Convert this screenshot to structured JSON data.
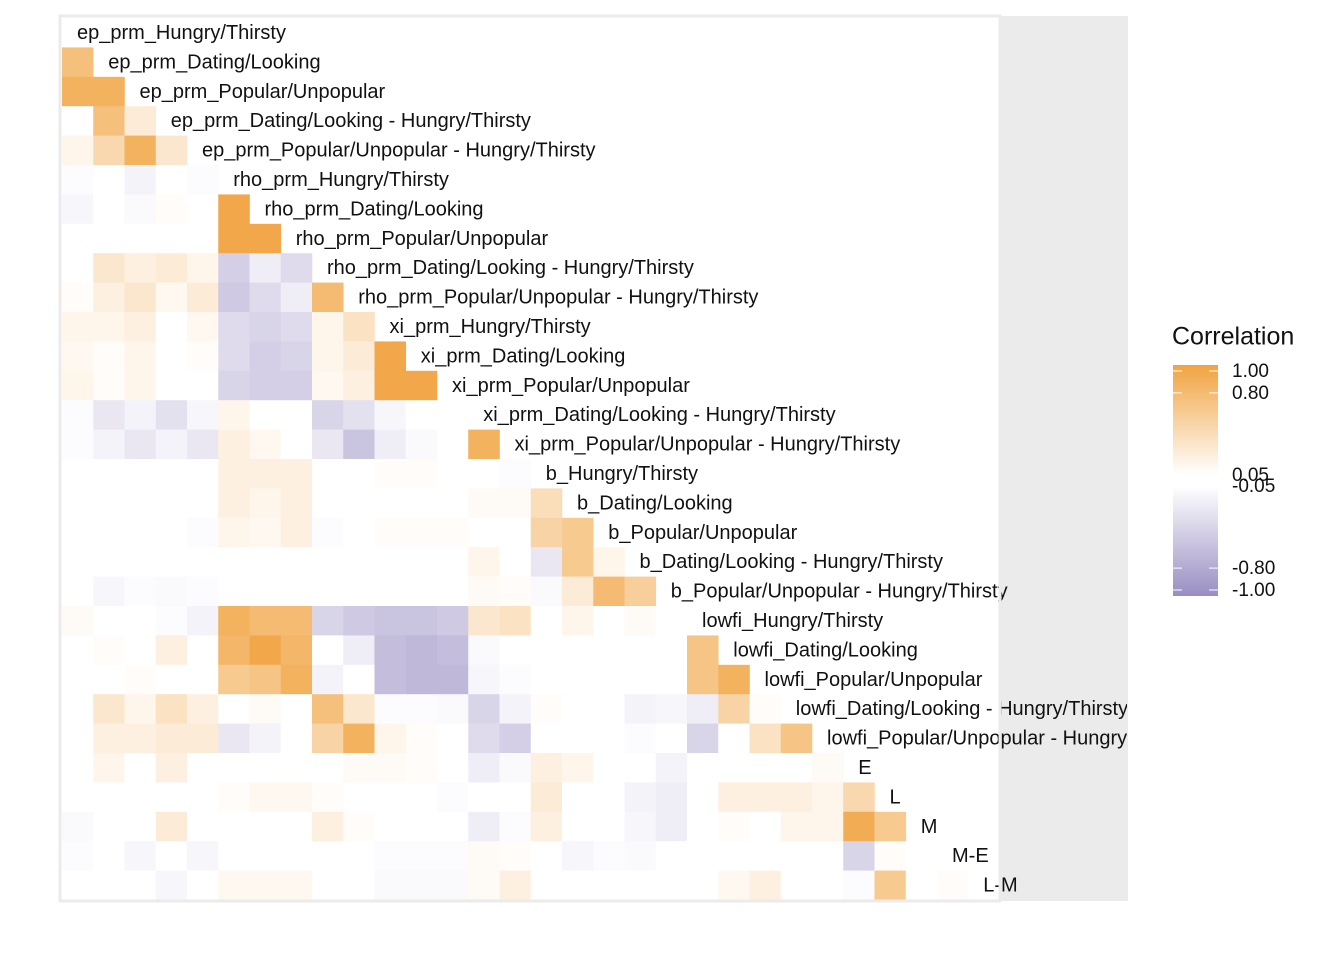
{
  "chart_data": {
    "type": "heatmap",
    "variables": [
      "ep_prm_Hungry/Thirsty",
      "ep_prm_Dating/Looking",
      "ep_prm_Popular/Unpopular",
      "ep_prm_Dating/Looking - Hungry/Thirsty",
      "ep_prm_Popular/Unpopular - Hungry/Thirsty",
      "rho_prm_Hungry/Thirsty",
      "rho_prm_Dating/Looking",
      "rho_prm_Popular/Unpopular",
      "rho_prm_Dating/Looking - Hungry/Thirsty",
      "rho_prm_Popular/Unpopular - Hungry/Thirsty",
      "xi_prm_Hungry/Thirsty",
      "xi_prm_Dating/Looking",
      "xi_prm_Popular/Unpopular",
      "xi_prm_Dating/Looking - Hungry/Thirsty",
      "xi_prm_Popular/Unpopular - Hungry/Thirsty",
      "b_Hungry/Thirsty",
      "b_Dating/Looking",
      "b_Popular/Unpopular",
      "b_Dating/Looking - Hungry/Thirsty",
      "b_Popular/Unpopular - Hungry/Thirsty",
      "lowfi_Hungry/Thirsty",
      "lowfi_Dating/Looking",
      "lowfi_Popular/Unpopular",
      "lowfi_Dating/Looking - Hungry/Thirsty",
      "lowfi_Popular/Unpopular - Hungry/Thirsty",
      "E",
      "L",
      "M",
      "M-E",
      "L-M"
    ],
    "rows": [
      [],
      [
        0.7
      ],
      [
        0.85,
        0.85
      ],
      [
        0,
        0.7,
        0.25
      ],
      [
        0.15,
        0.45,
        0.85,
        0.3
      ],
      [
        -0.08,
        -0.03,
        -0.15,
        0,
        -0.08
      ],
      [
        -0.12,
        0,
        -0.1,
        0.08,
        -0.03,
        0.95
      ],
      [
        -0.05,
        0,
        -0.05,
        0,
        0,
        0.95,
        0.95
      ],
      [
        0,
        0.3,
        0.2,
        0.25,
        0.15,
        -0.45,
        -0.2,
        -0.35
      ],
      [
        0.08,
        0.2,
        0.3,
        0.12,
        0.25,
        -0.5,
        -0.35,
        -0.2,
        0.75
      ],
      [
        0.15,
        0.15,
        0.2,
        0.05,
        0.12,
        -0.35,
        -0.4,
        -0.35,
        0.15,
        0.35
      ],
      [
        0.12,
        0.08,
        0.15,
        0,
        0.08,
        -0.35,
        -0.45,
        -0.4,
        0.15,
        0.25,
        0.95
      ],
      [
        0.15,
        0.08,
        0.15,
        0,
        0.05,
        -0.4,
        -0.45,
        -0.45,
        0.12,
        0.2,
        0.95,
        0.95
      ],
      [
        -0.08,
        -0.25,
        -0.15,
        -0.3,
        -0.12,
        0.15,
        0,
        0,
        -0.4,
        -0.3,
        -0.12,
        -0.05,
        0
      ],
      [
        -0.08,
        -0.15,
        -0.25,
        -0.15,
        -0.25,
        0.2,
        0.12,
        0,
        -0.25,
        -0.55,
        -0.2,
        -0.1,
        -0.05,
        0.85
      ],
      [
        0,
        0,
        0,
        0.05,
        0,
        0.2,
        0.2,
        0.2,
        0,
        0,
        0.08,
        0.08,
        0.05,
        0,
        -0.08
      ],
      [
        0,
        0,
        0,
        0,
        0,
        0.2,
        0.15,
        0.2,
        -0.05,
        -0.03,
        0.05,
        0.05,
        0.05,
        0.1,
        0.1,
        0.4
      ],
      [
        0,
        0,
        -0.03,
        -0.05,
        -0.08,
        0.15,
        0.12,
        0.2,
        -0.08,
        0,
        0.08,
        0.08,
        0.08,
        0,
        0.05,
        0.5,
        0.6
      ],
      [
        0,
        -0.03,
        -0.05,
        0,
        -0.05,
        0,
        0,
        0,
        0,
        0,
        -0.05,
        -0.03,
        -0.03,
        0.15,
        0.05,
        -0.25,
        0.6,
        0.15
      ],
      [
        0,
        -0.12,
        -0.08,
        -0.1,
        -0.08,
        0,
        0,
        0.05,
        0,
        0,
        0,
        0,
        0,
        0.1,
        0.08,
        -0.1,
        0.25,
        0.75,
        0.55
      ],
      [
        0.1,
        0,
        -0.05,
        -0.08,
        -0.15,
        0.85,
        0.75,
        0.75,
        -0.4,
        -0.5,
        -0.55,
        -0.55,
        -0.5,
        0.3,
        0.35,
        0,
        0.15,
        0,
        0.1,
        0
      ],
      [
        -0.05,
        0.08,
        0.03,
        0.2,
        0,
        0.8,
        0.95,
        0.8,
        0,
        -0.2,
        -0.6,
        -0.65,
        -0.6,
        -0.1,
        0.05,
        0,
        0.05,
        0,
        0,
        -0.05,
        0.65
      ],
      [
        0,
        0.05,
        0.08,
        0.05,
        0,
        0.6,
        0.65,
        0.85,
        -0.15,
        0,
        -0.6,
        -0.65,
        -0.65,
        -0.12,
        -0.08,
        0,
        0,
        0,
        0,
        0,
        0.65,
        0.85
      ],
      [
        -0.05,
        0.3,
        0.15,
        0.35,
        0.2,
        -0.03,
        0.1,
        0,
        0.7,
        0.3,
        -0.08,
        -0.08,
        -0.1,
        -0.4,
        -0.15,
        0.08,
        -0.03,
        -0.05,
        -0.15,
        -0.12,
        -0.2,
        0.5,
        0.08
      ],
      [
        0,
        0.2,
        0.2,
        0.25,
        0.25,
        -0.25,
        -0.15,
        0,
        0.5,
        0.85,
        0.15,
        0.08,
        0.05,
        -0.35,
        -0.45,
        0,
        -0.03,
        -0.05,
        -0.08,
        -0.05,
        -0.4,
        0,
        0.35,
        0.65
      ],
      [
        0,
        0.15,
        0,
        0.2,
        0.05,
        0,
        0,
        0,
        0.05,
        0.1,
        0.1,
        0.08,
        0.05,
        -0.2,
        -0.1,
        0.2,
        0.15,
        0,
        0,
        -0.15,
        0,
        0,
        0,
        0.05,
        0.1
      ],
      [
        0,
        0,
        0,
        0.03,
        -0.05,
        0.08,
        0.12,
        0.12,
        0.08,
        0,
        -0.05,
        -0.05,
        -0.08,
        -0.05,
        0,
        0.25,
        0,
        0,
        -0.15,
        -0.2,
        0,
        0.2,
        0.2,
        0.2,
        0.15,
        0.45
      ],
      [
        -0.1,
        0,
        -0.05,
        0.25,
        0,
        0,
        0,
        0,
        0.2,
        0.08,
        0,
        0,
        0,
        -0.2,
        -0.08,
        0.2,
        0,
        -0.05,
        -0.12,
        -0.2,
        0,
        0.08,
        0,
        0.15,
        0.15,
        0.9,
        0.6
      ],
      [
        -0.08,
        -0.05,
        -0.12,
        0,
        -0.12,
        0,
        0,
        0,
        -0.03,
        -0.05,
        -0.08,
        -0.08,
        -0.08,
        0.1,
        0.08,
        -0.03,
        -0.12,
        -0.08,
        -0.1,
        -0.05,
        0,
        0,
        0,
        0.05,
        0.05,
        -0.4,
        0.08,
        0
      ],
      [
        0,
        0,
        0,
        -0.12,
        -0.05,
        0.12,
        0.12,
        0.12,
        -0.05,
        -0.05,
        -0.1,
        -0.1,
        -0.1,
        0.1,
        0.2,
        0,
        0,
        0,
        0,
        0,
        0.05,
        0.12,
        0.2,
        0,
        0,
        -0.08,
        0.6,
        -0.03,
        0.08
      ]
    ],
    "legend_title": "Correlation",
    "zlim": [
      -1,
      1
    ],
    "scale": [
      {
        "value": -1,
        "color": "#998ec3"
      },
      {
        "value": -0.05,
        "color": "#ffffff"
      },
      {
        "value": 0.05,
        "color": "#ffffff"
      },
      {
        "value": 1,
        "color": "#f1a340"
      }
    ],
    "zticks": [
      {
        "value": 1,
        "label": "1.00"
      },
      {
        "value": 0.8,
        "label": "0.80"
      },
      {
        "value": 0.05,
        "label": "0.05"
      },
      {
        "value": -0.05,
        "label": "-0.05"
      },
      {
        "value": -0.8,
        "label": "-0.80"
      },
      {
        "value": -1,
        "label": "-1.00"
      }
    ]
  }
}
